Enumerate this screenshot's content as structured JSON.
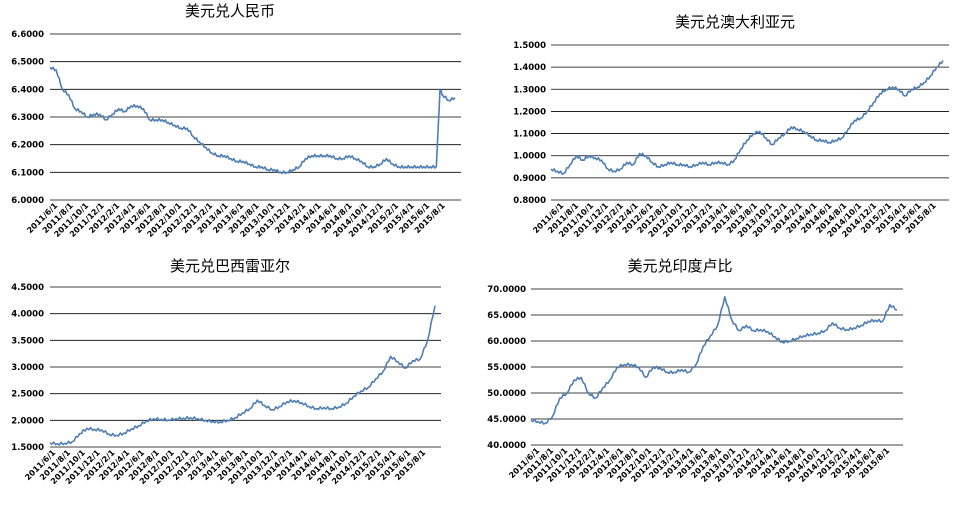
{
  "chart_data": [
    {
      "type": "line",
      "title": "美元兑人民币",
      "yticks": [
        "6.0000",
        "6.1000",
        "6.2000",
        "6.3000",
        "6.4000",
        "6.5000",
        "6.6000"
      ],
      "ylim": [
        6.0,
        6.6
      ],
      "xticks": [
        "2011/6/1",
        "2011/8/1",
        "2011/10/1",
        "2011/12/1",
        "2012/2/1",
        "2012/4/1",
        "2012/6/1",
        "2012/8/1",
        "2012/10/1",
        "2012/12/1",
        "2013/2/1",
        "2013/4/1",
        "2013/6/1",
        "2013/8/1",
        "2013/10/1",
        "2013/12/1",
        "2014/2/1",
        "2014/4/1",
        "2014/6/1",
        "2014/8/1",
        "2014/10/1",
        "2014/12/1",
        "2015/2/1",
        "2015/4/1",
        "2015/6/1",
        "2015/8/1"
      ],
      "series": [
        {
          "color": "#4f7eb3",
          "points": [
            [
              0,
              6.48
            ],
            [
              1,
              6.47
            ],
            [
              2,
              6.4
            ],
            [
              3,
              6.38
            ],
            [
              4,
              6.33
            ],
            [
              5,
              6.32
            ],
            [
              6,
              6.3
            ],
            [
              7,
              6.31
            ],
            [
              8,
              6.31
            ],
            [
              9,
              6.29
            ],
            [
              10,
              6.31
            ],
            [
              11,
              6.33
            ],
            [
              12,
              6.32
            ],
            [
              13,
              6.34
            ],
            [
              14,
              6.34
            ],
            [
              15,
              6.33
            ],
            [
              16,
              6.29
            ],
            [
              17,
              6.29
            ],
            [
              18,
              6.29
            ],
            [
              19,
              6.28
            ],
            [
              20,
              6.27
            ],
            [
              21,
              6.26
            ],
            [
              22,
              6.26
            ],
            [
              23,
              6.23
            ],
            [
              24,
              6.21
            ],
            [
              25,
              6.19
            ],
            [
              26,
              6.17
            ],
            [
              27,
              6.16
            ],
            [
              28,
              6.16
            ],
            [
              29,
              6.15
            ],
            [
              30,
              6.14
            ],
            [
              31,
              6.14
            ],
            [
              32,
              6.13
            ],
            [
              33,
              6.12
            ],
            [
              34,
              6.12
            ],
            [
              35,
              6.11
            ],
            [
              36,
              6.11
            ],
            [
              37,
              6.1
            ],
            [
              38,
              6.1
            ],
            [
              39,
              6.11
            ],
            [
              40,
              6.12
            ],
            [
              41,
              6.15
            ],
            [
              42,
              6.16
            ],
            [
              43,
              6.16
            ],
            [
              44,
              6.16
            ],
            [
              45,
              6.16
            ],
            [
              46,
              6.15
            ],
            [
              47,
              6.15
            ],
            [
              48,
              6.16
            ],
            [
              49,
              6.15
            ],
            [
              50,
              6.14
            ],
            [
              51,
              6.12
            ],
            [
              52,
              6.12
            ],
            [
              53,
              6.13
            ],
            [
              54,
              6.15
            ],
            [
              55,
              6.13
            ],
            [
              56,
              6.12
            ],
            [
              57,
              6.12
            ],
            [
              58,
              6.12
            ],
            [
              59,
              6.12
            ],
            [
              60,
              6.12
            ],
            [
              61,
              6.12
            ],
            [
              62,
              6.12
            ],
            [
              62.6,
              6.4
            ],
            [
              63,
              6.38
            ],
            [
              64,
              6.36
            ],
            [
              65,
              6.37
            ]
          ]
        }
      ]
    },
    {
      "type": "line",
      "title": "美元兑澳大利亚元",
      "yticks": [
        "0.8000",
        "0.9000",
        "1.0000",
        "1.1000",
        "1.2000",
        "1.3000",
        "1.4000",
        "1.5000"
      ],
      "ylim": [
        0.8,
        1.5
      ],
      "xticks": [
        "2011/6/1",
        "2011/8/1",
        "2011/10/1",
        "2011/12/1",
        "2012/2/1",
        "2012/4/1",
        "2012/6/1",
        "2012/8/1",
        "2012/10/1",
        "2012/12/1",
        "2013/2/1",
        "2013/4/1",
        "2013/6/1",
        "2013/8/1",
        "2013/10/1",
        "2013/12/1",
        "2014/2/1",
        "2014/4/1",
        "2014/6/1",
        "2014/8/1",
        "2014/10/1",
        "2014/12/1",
        "2015/2/1",
        "2015/4/1",
        "2015/6/1",
        "2015/8/1"
      ],
      "series": [
        {
          "color": "#4f7eb3",
          "points": [
            [
              0,
              0.94
            ],
            [
              1,
              0.93
            ],
            [
              2,
              0.92
            ],
            [
              3,
              0.96
            ],
            [
              4,
              1.0
            ],
            [
              5,
              0.98
            ],
            [
              6,
              1.0
            ],
            [
              7,
              0.99
            ],
            [
              8,
              0.98
            ],
            [
              9,
              0.94
            ],
            [
              10,
              0.93
            ],
            [
              11,
              0.94
            ],
            [
              12,
              0.97
            ],
            [
              13,
              0.96
            ],
            [
              14,
              1.01
            ],
            [
              15,
              1.0
            ],
            [
              16,
              0.97
            ],
            [
              17,
              0.95
            ],
            [
              18,
              0.96
            ],
            [
              19,
              0.97
            ],
            [
              20,
              0.96
            ],
            [
              21,
              0.96
            ],
            [
              22,
              0.95
            ],
            [
              23,
              0.96
            ],
            [
              24,
              0.97
            ],
            [
              25,
              0.96
            ],
            [
              26,
              0.97
            ],
            [
              27,
              0.97
            ],
            [
              28,
              0.96
            ],
            [
              29,
              0.98
            ],
            [
              30,
              1.03
            ],
            [
              31,
              1.07
            ],
            [
              32,
              1.1
            ],
            [
              33,
              1.11
            ],
            [
              34,
              1.08
            ],
            [
              35,
              1.05
            ],
            [
              36,
              1.08
            ],
            [
              37,
              1.1
            ],
            [
              38,
              1.13
            ],
            [
              39,
              1.12
            ],
            [
              40,
              1.11
            ],
            [
              41,
              1.09
            ],
            [
              42,
              1.07
            ],
            [
              43,
              1.07
            ],
            [
              44,
              1.06
            ],
            [
              45,
              1.07
            ],
            [
              46,
              1.08
            ],
            [
              47,
              1.12
            ],
            [
              48,
              1.16
            ],
            [
              49,
              1.17
            ],
            [
              50,
              1.2
            ],
            [
              51,
              1.24
            ],
            [
              52,
              1.28
            ],
            [
              53,
              1.3
            ],
            [
              54,
              1.31
            ],
            [
              55,
              1.3
            ],
            [
              56,
              1.27
            ],
            [
              57,
              1.3
            ],
            [
              58,
              1.31
            ],
            [
              59,
              1.33
            ],
            [
              60,
              1.36
            ],
            [
              61,
              1.4
            ],
            [
              62,
              1.43
            ]
          ]
        }
      ]
    },
    {
      "type": "line",
      "title": "美元兑巴西雷亚尔",
      "yticks": [
        "1.5000",
        "2.0000",
        "2.5000",
        "3.0000",
        "3.5000",
        "4.0000",
        "4.5000"
      ],
      "ylim": [
        1.5,
        4.5
      ],
      "xticks": [
        "2011/6/1",
        "2011/8/1",
        "2011/10/1",
        "2011/12/1",
        "2012/2/1",
        "2012/4/1",
        "2012/6/1",
        "2012/8/1",
        "2012/10/1",
        "2012/12/1",
        "2013/2/1",
        "2013/4/1",
        "2013/6/1",
        "2013/8/1",
        "2013/10/1",
        "2013/12/1",
        "2014/2/1",
        "2014/4/1",
        "2014/6/1",
        "2014/8/1",
        "2014/10/1",
        "2014/12/1",
        "2015/2/1",
        "2015/4/1",
        "2015/6/1",
        "2015/8/1"
      ],
      "series": [
        {
          "color": "#4f7eb3",
          "points": [
            [
              0,
              1.58
            ],
            [
              1,
              1.56
            ],
            [
              2,
              1.57
            ],
            [
              3,
              1.6
            ],
            [
              4,
              1.75
            ],
            [
              5,
              1.85
            ],
            [
              6,
              1.83
            ],
            [
              7,
              1.82
            ],
            [
              8,
              1.74
            ],
            [
              9,
              1.72
            ],
            [
              10,
              1.76
            ],
            [
              11,
              1.84
            ],
            [
              12,
              1.9
            ],
            [
              13,
              1.99
            ],
            [
              14,
              2.03
            ],
            [
              15,
              2.02
            ],
            [
              16,
              2.01
            ],
            [
              17,
              2.03
            ],
            [
              18,
              2.04
            ],
            [
              19,
              2.05
            ],
            [
              20,
              2.03
            ],
            [
              21,
              2.0
            ],
            [
              22,
              1.98
            ],
            [
              23,
              1.97
            ],
            [
              24,
              2.0
            ],
            [
              25,
              2.05
            ],
            [
              26,
              2.14
            ],
            [
              27,
              2.22
            ],
            [
              28,
              2.38
            ],
            [
              29,
              2.28
            ],
            [
              30,
              2.2
            ],
            [
              31,
              2.26
            ],
            [
              32,
              2.35
            ],
            [
              33,
              2.37
            ],
            [
              34,
              2.33
            ],
            [
              35,
              2.26
            ],
            [
              36,
              2.22
            ],
            [
              37,
              2.24
            ],
            [
              38,
              2.22
            ],
            [
              39,
              2.25
            ],
            [
              40,
              2.32
            ],
            [
              41,
              2.45
            ],
            [
              42,
              2.55
            ],
            [
              43,
              2.62
            ],
            [
              44,
              2.78
            ],
            [
              45,
              2.92
            ],
            [
              46,
              3.2
            ],
            [
              47,
              3.1
            ],
            [
              48,
              2.98
            ],
            [
              49,
              3.12
            ],
            [
              50,
              3.15
            ],
            [
              51,
              3.5
            ],
            [
              52,
              4.15
            ]
          ]
        }
      ]
    },
    {
      "type": "line",
      "title": "美元兑印度卢比",
      "yticks": [
        "40.0000",
        "45.0000",
        "50.0000",
        "55.0000",
        "60.0000",
        "65.0000",
        "70.0000"
      ],
      "ylim": [
        40,
        70
      ],
      "xticks": [
        "2011/6/1",
        "2011/8/1",
        "2011/10/1",
        "2011/12/1",
        "2012/2/1",
        "2012/4/1",
        "2012/6/1",
        "2012/8/1",
        "2012/10/1",
        "2012/12/1",
        "2013/2/1",
        "2013/4/1",
        "2013/6/1",
        "2013/8/1",
        "2013/10/1",
        "2013/12/1",
        "2014/2/1",
        "2014/4/1",
        "2014/6/1",
        "2014/8/1",
        "2014/10/1",
        "2014/12/1",
        "2015/2/1",
        "2015/4/1",
        "2015/6/1",
        "2015/8/1"
      ],
      "series": [
        {
          "color": "#4f7eb3",
          "points": [
            [
              0,
              44.8
            ],
            [
              1,
              44.5
            ],
            [
              2,
              44.2
            ],
            [
              3,
              45.5
            ],
            [
              4,
              49
            ],
            [
              5,
              50
            ],
            [
              6,
              52.5
            ],
            [
              7,
              53
            ],
            [
              8,
              50
            ],
            [
              9,
              49
            ],
            [
              10,
              51
            ],
            [
              11,
              52.5
            ],
            [
              12,
              55
            ],
            [
              13,
              55.5
            ],
            [
              14,
              55.5
            ],
            [
              15,
              55
            ],
            [
              16,
              53
            ],
            [
              17,
              55
            ],
            [
              18,
              54.8
            ],
            [
              19,
              54
            ],
            [
              20,
              54
            ],
            [
              21,
              54.5
            ],
            [
              22,
              54
            ],
            [
              23,
              55.5
            ],
            [
              24,
              59
            ],
            [
              25,
              61
            ],
            [
              26,
              63
            ],
            [
              27,
              68.5
            ],
            [
              28,
              64
            ],
            [
              29,
              62
            ],
            [
              30,
              63
            ],
            [
              31,
              62
            ],
            [
              32,
              62.2
            ],
            [
              33,
              61.8
            ],
            [
              34,
              60.8
            ],
            [
              35,
              59.8
            ],
            [
              36,
              60
            ],
            [
              37,
              60.5
            ],
            [
              38,
              61
            ],
            [
              39,
              61.3
            ],
            [
              40,
              61.5
            ],
            [
              41,
              62
            ],
            [
              42,
              63.5
            ],
            [
              43,
              62.5
            ],
            [
              44,
              62.2
            ],
            [
              45,
              62.5
            ],
            [
              46,
              63
            ],
            [
              47,
              63.8
            ],
            [
              48,
              64
            ],
            [
              49,
              63.8
            ],
            [
              50,
              67
            ],
            [
              51,
              66
            ]
          ]
        }
      ]
    }
  ]
}
